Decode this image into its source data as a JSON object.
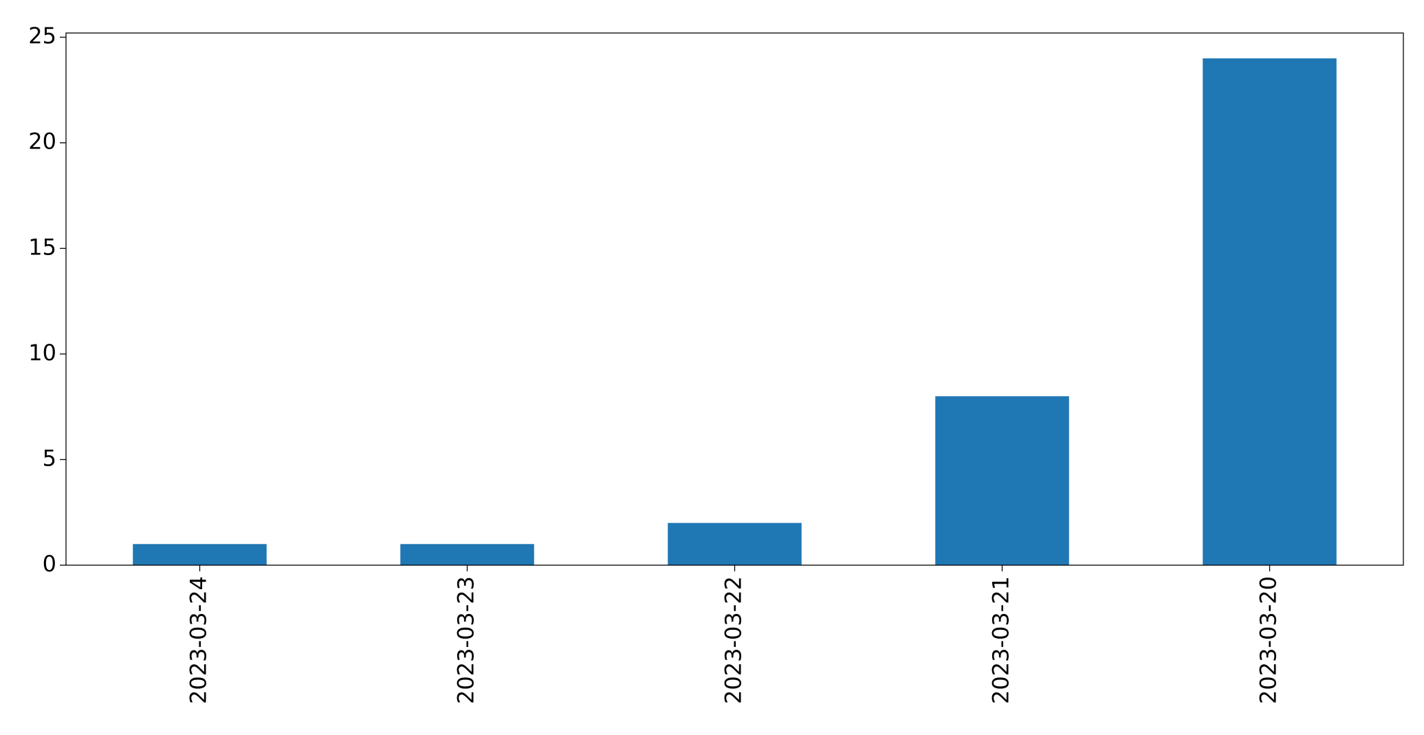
{
  "chart_data": {
    "type": "bar",
    "categories": [
      "2023-03-24",
      "2023-03-23",
      "2023-03-22",
      "2023-03-21",
      "2023-03-20"
    ],
    "values": [
      1,
      1,
      2,
      8,
      24
    ],
    "color": "#1f77b4",
    "ylim": [
      0,
      25.2
    ],
    "yticks": [
      0,
      5,
      10,
      15,
      20,
      25
    ],
    "grid": false
  }
}
